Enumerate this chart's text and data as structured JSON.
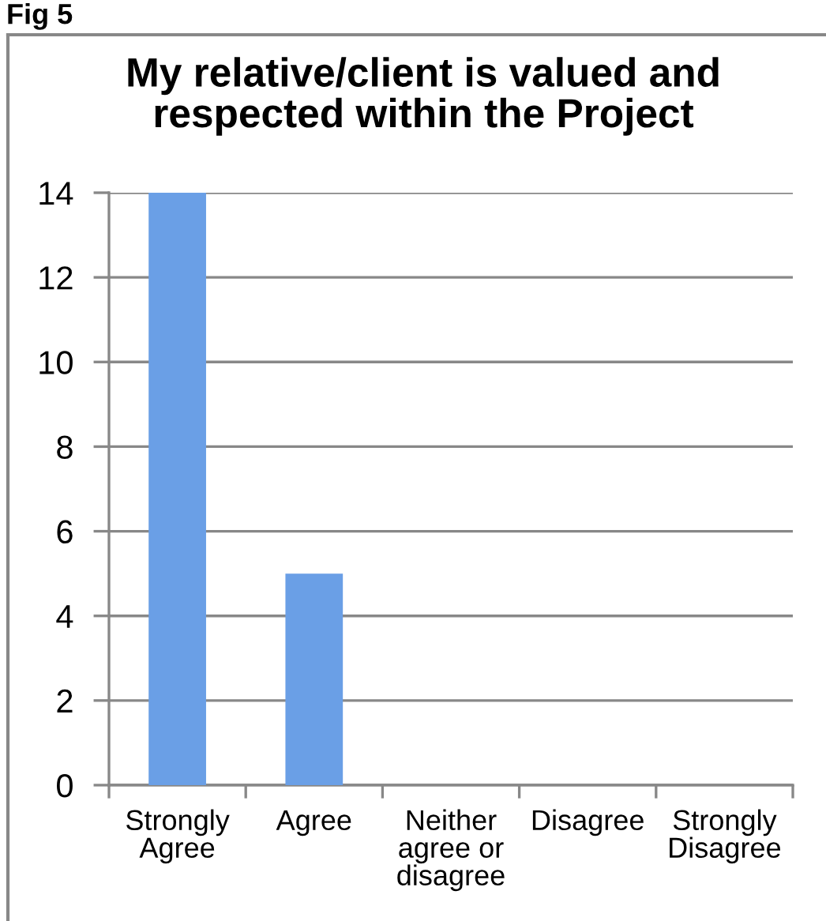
{
  "chart_data": {
    "type": "bar",
    "title": "My relative/client is valued and\nrespected within the Project",
    "annotations": [
      "Fig 5"
    ],
    "categories": [
      "Strongly\nAgree",
      "Agree",
      "Neither\nagree or\ndisagree",
      "Disagree",
      "Strongly\nDisagree"
    ],
    "values": [
      14,
      5,
      0,
      0,
      0
    ],
    "color": "#6a9fe6",
    "ylim": [
      0,
      14
    ],
    "yticks": [
      0,
      2,
      4,
      6,
      8,
      10,
      12,
      14
    ],
    "grid": "y",
    "legend": false
  }
}
